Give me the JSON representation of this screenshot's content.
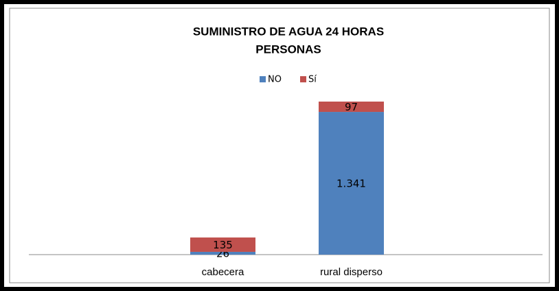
{
  "chart_data": {
    "type": "stacked_bar",
    "title": [
      "SUMINISTRO DE AGUA 24 HORAS",
      "PERSONAS"
    ],
    "categories": [
      "cabecera",
      "rural disperso"
    ],
    "series": [
      {
        "name": "NO",
        "color": "#4f81bd",
        "values": [
          26,
          1341
        ],
        "value_labels": [
          "26",
          "1.341"
        ]
      },
      {
        "name": "Sí",
        "color": "#c0504d",
        "values": [
          135,
          97
        ]
      }
    ],
    "legend": "top"
  }
}
